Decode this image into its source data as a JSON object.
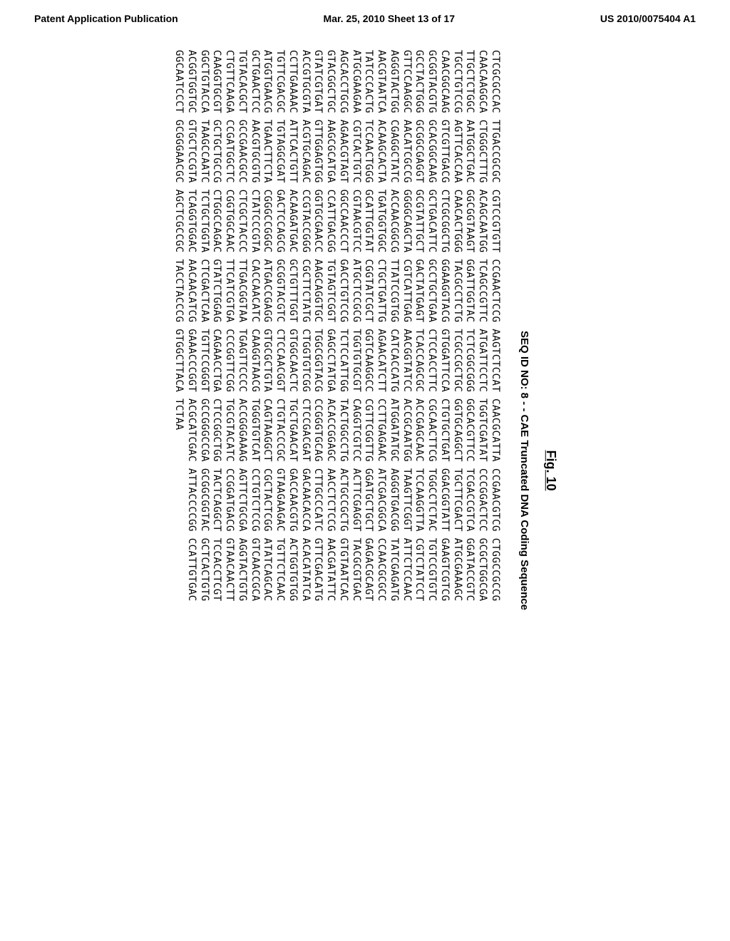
{
  "header": {
    "left": "Patent Application Publication",
    "middle": "Mar. 25, 2010  Sheet 13 of 17",
    "right": "US 2010/0075404 A1"
  },
  "figure": {
    "label": "Fig. 10",
    "seq_title": "SEQ ID NO: 8 - - CAE Truncated DNA Coding Sequence",
    "lines": [
      "CTCGCGCCAC TTGACCGCGC CGTCCGTGTT CCGAACTCCG AAGTCTCCAT CAACGCATTA CCGAACGTCG CTGGCCGCCG",
      "CAACAAGGCA CTGGGCTTTG ACAGCAATGG TCAGCCGTTC ATGATTCCTC TGGTCGATAT CCCGGACTCC GCGCTGGCGA",
      "TTGCTCTGGC AATGGCTGAC GGCGGTAAGT GGATTGGTAC TCTCGGCGGG GGCACGTTCC TCGACCGTCA GGATACCGTC",
      "TGCCTGTCCG AGTTCACCAA CAACACTGGG TACGCCTCTG TCGCCGCTGC GGTGCAGGCT TGCTTCGACT ATGCGAAAGC",
      "CAACGGCAAG GTCGTTGACG CTCGCGGCTG GGAAGGTACG GTGGATTCCA CTGTGCTGAT GGACGGTATT GAAGTCGTCG",
      "GCGGTACGTG GCACGGCAAG GCTGACATTC GCCTGCTGAA CTCCACCTTC CGCAACTTCG TGGCCTCTAC TGTCCGTGTC",
      "GCCTACTGGG GCGGCGAGGT GCGTATTGCT GACTATGAGT TCACCAGCGC ACCGAGCAAC TCCAAGGTTA CGTCTATCCT",
      "GTTCCAAGGC AACATCGCCG GGGGCAGCTA CGTCATTGAG AACGGTATCC ACCGCAATGG TAAGTTCGGT ATTCTCCAAC",
      "AGGGTACTGG CGAGGCTATC ACCAACGGCG TTATCCGTGG CATCACCATG ATGGATATGC AGGGTGACGG TATCGAGATG",
      "AACGTAATCA ACAAGCACTA TGATGGTGGC CTGCTGATTG AGAACATCTT CCTTGAGAAC ATCGACGGCA CCAACGCGCC",
      "TATCCCACTG TCCAACTGGG GCATTGGTAT CGGTATCGCT GGTCAAGGCC CGTTCGGTTG GGATGCTGCT GAGACGCAGT",
      "ATGCGAAGAA CGTCACTGTC CGTAACGTCC ATGCTCCGCG TGGTGTGCGT CAGGTCGTCC ACTTCGAGGT TACGCGTGAC",
      "AGCACCTGCG AGAACGTAGT GGCCAACCCT GACCTGTCCG TCTCCATTGG TACTGGCCTG ACTGCCGCTG GTGTAATCAC",
      "GTACGGCTGC AAGCGCATGA CCATTGACGG TGTAGTCGGT GAGCCTATGA ACACCGGAGC AACCTCTCCG AACGATATTC",
      "GTATCGTGAT GTTGGAGTGG GGTGCGAACC AAGCAGGTGC TGGCGGTACG CCGGGTGCAG CTTGCCCATC GTTCGACATG",
      "ACCGTGCGTA ACGTGCAGAC CCGTACCGGG CGCTTCTATG CTGGTGTCGG CTCCGACGAT GACAACACCA ACACATATCA",
      "CCTTGAAAAC ATTCACTGTT ACAAGATGAC GCTGTTTGGT GTGGCAACTC TGCTGAACAT GACCAACGTG ACTGGTGTGG",
      "TGTTCGACGC TGTAGGCGAT GACTCCAGCG GCGGTACGTC CTCCAACGGT CTGTACCCGC GTAAGAAGAC TGTTCTCAAC",
      "ATGGTGAACG TGAACTTCTA CGGGCCGGGC ATGACCGAGG GTGCGCTGTA CAGTAAGGCT CGCTACTCGG ATATCAGCAC",
      "GCTGAACTCC AACGTGCGTG CTATCCCGTA CACCAACATC CAAGGTAACG TGGGTGTCAT CCTGTCTCCG GTCAACCGCA",
      "TGTACACGCT GCCGAACGCC CTCGCTACCC TTGACGGTAA TGAGTTCCCC ACCGGGAAAG AGTTCTGCGA AGGTACTGTG",
      "CTGTTCAAGA CCGATGGCTC CGGTGGCAAC TTCATCGTGA CCCGGTTCGG TGCGTACATC CCGGATGACG GTAACAACTT",
      "CAAGGTGCGT GCTGCTGCCG CTGGCCAGAC GTATCTGGAG CAGAACCTGA CTCCGGCTGG TACTCAGGCT TCCACCTCGT",
      "GGCTGTACCA TAAGCCAATC TCTGCTGGTA CTCGACTCAA TGTTCCGGGT GCCGGGCCGA GCGGCGGTAC GCTCACTGTG",
      "ACGGTGGTGC GTGCTCCGTA TCAGGTGGAC AACAACATCG GAAACCCGGT ACGCATCGAC ATTACCCCGG CCATTGTGAC",
      "GGCAATCCCT GCGGGAACGC AGCTCGCCGC TACCTACCCG GTGGCTTACA TCTAA"
    ]
  }
}
